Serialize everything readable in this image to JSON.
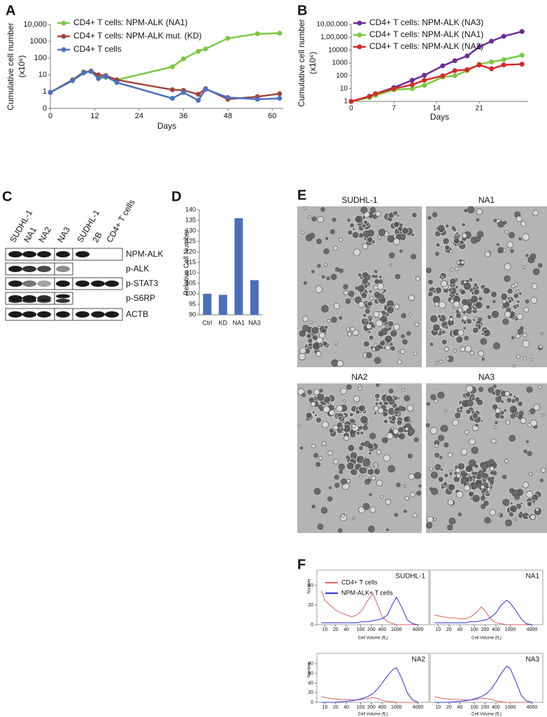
{
  "panel_labels": [
    "A",
    "B",
    "C",
    "D",
    "E",
    "F"
  ],
  "chart_data": [
    {
      "type": "line",
      "log_y": true,
      "markers": true,
      "legend": "top-left",
      "xlabel": "Days",
      "ylabel": [
        "Cumulative cell number",
        "(x10⁶)"
      ],
      "x": [
        0,
        6,
        9,
        11,
        13,
        15,
        18,
        33,
        36,
        40,
        42,
        48,
        56,
        62
      ],
      "series": [
        {
          "name": "CD4+ T cells: NPM-ALK (NA1)",
          "color": "#7ac943",
          "values": [
            0.9,
            5,
            15,
            16,
            8,
            7,
            5,
            30,
            90,
            250,
            350,
            1500,
            2800,
            3000
          ]
        },
        {
          "name": "CD4+ T cells: NPM-ALK mut. (KD)",
          "color": "#a0463c",
          "values": [
            0.9,
            5,
            14,
            17,
            10,
            9,
            5,
            1.3,
            1.2,
            0.7,
            1.5,
            0.35,
            0.5,
            0.75
          ]
        },
        {
          "name": "CD4+ T cells",
          "color": "#4a72c4",
          "values": [
            0.9,
            4.5,
            13,
            16,
            6,
            8,
            3.5,
            0.4,
            0.9,
            0.3,
            1.4,
            0.45,
            0.35,
            0.4
          ]
        }
      ],
      "xlim": [
        0,
        63
      ],
      "xticks": [
        0,
        12,
        24,
        36,
        48,
        60
      ],
      "ylim": [
        0.1,
        10000
      ],
      "yticks": [
        {
          "value": 0.1,
          "label": "0"
        },
        1,
        10,
        100,
        1000,
        {
          "value": 10000,
          "label": "10,000"
        }
      ]
    },
    {
      "type": "line",
      "log_y": true,
      "markers": true,
      "legend": "top-left",
      "xlabel": "Days",
      "ylabel": [
        "Cumulative cell number",
        "(x10⁶)"
      ],
      "x": [
        0,
        3,
        4,
        7,
        10,
        12,
        15,
        17,
        19,
        21,
        23,
        25,
        28
      ],
      "series": [
        {
          "name": "CD4+ T cells: NPM-ALK (NA3)",
          "color": "#6a2c9a",
          "values": [
            1,
            2.5,
            4,
            12,
            45,
            110,
            600,
            1500,
            3500,
            18000,
            50000,
            120000,
            280000
          ]
        },
        {
          "name": "CD4+ T cells: NPM-ALK (NA1)",
          "color": "#7ac943",
          "values": [
            1,
            2,
            3,
            8,
            10,
            18,
            80,
            100,
            250,
            800,
            1200,
            1800,
            4000
          ]
        },
        {
          "name": "CD4+ T cells: NPM-ALK (NA2)",
          "color": "#d42a2a",
          "values": [
            1,
            2.5,
            4,
            10,
            20,
            45,
            100,
            250,
            300,
            700,
            350,
            700,
            800
          ]
        }
      ],
      "xlim": [
        0,
        29
      ],
      "xticks": [
        0,
        7,
        14,
        21
      ],
      "ylim": [
        1,
        1000000
      ],
      "yticks": [
        1,
        10,
        100,
        1000,
        10000,
        {
          "value": 100000,
          "label": "1,00,000"
        },
        {
          "value": 1000000,
          "label": "10,00,000"
        }
      ]
    },
    {
      "type": "bar",
      "ylabel": "Relative Cell Number",
      "categories": [
        "Ctrl",
        "KD",
        "NA1",
        "NA3"
      ],
      "values": [
        100,
        99.5,
        136,
        106.5
      ],
      "color": "#4a6fb8",
      "ylim": [
        90,
        140
      ],
      "yticks": [
        90,
        95,
        100,
        105,
        110,
        115,
        120,
        125,
        130,
        135,
        140
      ]
    },
    {
      "type": "line",
      "log_x": true,
      "frame": true,
      "legend": "top-left",
      "title": "SUDHL-1",
      "xlabel": "Cell Volume (fL)",
      "ylabel": "Number",
      "x": [
        8,
        10,
        14,
        20,
        28,
        40,
        56,
        80,
        110,
        160,
        220,
        300,
        400,
        560,
        800,
        1000,
        1400,
        2000,
        2800,
        4000
      ],
      "series": [
        {
          "name": "CD4+ T cells",
          "color": "#e06060",
          "values": [
            35,
            25,
            20,
            15,
            12,
            10,
            8,
            10,
            15,
            25,
            32,
            20,
            8,
            3,
            1,
            0,
            0,
            0,
            0,
            0
          ]
        },
        {
          "name": "NPM-ALK+ T cells",
          "color": "#3030e0",
          "values": [
            2,
            2,
            2,
            2,
            2,
            2,
            2,
            2,
            3,
            3,
            4,
            5,
            6,
            10,
            22,
            28,
            18,
            5,
            1,
            0
          ]
        }
      ],
      "xlim": [
        6,
        8000
      ],
      "xticks": [
        10,
        20,
        40,
        100,
        200,
        400,
        1000,
        4000
      ],
      "ylim": [
        0,
        50
      ],
      "yticks": [
        0,
        20,
        40
      ]
    },
    {
      "type": "line",
      "log_x": true,
      "frame": true,
      "title": "NA1",
      "xlabel": "Cell Volume (fL)",
      "x": [
        8,
        10,
        14,
        20,
        28,
        40,
        56,
        80,
        110,
        160,
        220,
        300,
        400,
        560,
        800,
        1000,
        1400,
        2000,
        2800,
        4000
      ],
      "series": [
        {
          "color": "#e06060",
          "values": [
            10,
            9,
            8,
            7,
            7,
            6,
            6,
            8,
            12,
            18,
            12,
            5,
            2,
            1,
            0,
            0,
            0,
            0,
            0,
            0
          ]
        },
        {
          "color": "#3030e0",
          "values": [
            2,
            2,
            2,
            2,
            2,
            2,
            2,
            3,
            3,
            4,
            5,
            8,
            12,
            20,
            25,
            22,
            15,
            6,
            1,
            0
          ]
        }
      ],
      "xlim": [
        6,
        8000
      ],
      "xticks": [
        10,
        20,
        40,
        100,
        200,
        400,
        1000,
        4000
      ],
      "ylim": [
        0,
        50
      ]
    },
    {
      "type": "line",
      "log_x": true,
      "frame": true,
      "title": "NA2",
      "xlabel": "Cell Volume (fL)",
      "ylabel": "Number",
      "x": [
        8,
        10,
        14,
        20,
        28,
        40,
        56,
        80,
        110,
        160,
        220,
        300,
        400,
        560,
        800,
        1000,
        1400,
        2000,
        2800,
        4000
      ],
      "series": [
        {
          "color": "#e06060",
          "values": [
            12,
            10,
            8,
            7,
            6,
            6,
            5,
            5,
            6,
            8,
            10,
            8,
            4,
            2,
            1,
            0,
            0,
            0,
            0,
            0
          ]
        },
        {
          "color": "#3030e0",
          "values": [
            0,
            0,
            0,
            0,
            1,
            2,
            3,
            5,
            8,
            12,
            18,
            28,
            40,
            55,
            68,
            72,
            50,
            20,
            5,
            0
          ]
        }
      ],
      "xlim": [
        6,
        8000
      ],
      "xticks": [
        10,
        20,
        40,
        100,
        200,
        400,
        1000,
        4000
      ],
      "ylim": [
        0,
        90
      ],
      "yticks": [
        0,
        20,
        40,
        60,
        80
      ]
    },
    {
      "type": "line",
      "log_x": true,
      "frame": true,
      "title": "NA3",
      "xlabel": "Cell Volume (fL)",
      "x": [
        8,
        10,
        14,
        20,
        28,
        40,
        56,
        80,
        110,
        160,
        220,
        300,
        400,
        560,
        800,
        1000,
        1400,
        2000,
        2800,
        4000
      ],
      "series": [
        {
          "color": "#e06060",
          "values": [
            12,
            10,
            8,
            7,
            6,
            6,
            5,
            5,
            6,
            8,
            8,
            6,
            3,
            1,
            0,
            0,
            0,
            0,
            0,
            0
          ]
        },
        {
          "color": "#3030e0",
          "values": [
            0,
            0,
            0,
            0,
            1,
            2,
            3,
            5,
            8,
            12,
            18,
            28,
            42,
            60,
            75,
            70,
            45,
            15,
            3,
            0
          ]
        }
      ],
      "xlim": [
        6,
        8000
      ],
      "xticks": [
        10,
        20,
        40,
        100,
        200,
        400,
        1000,
        4000
      ],
      "ylim": [
        0,
        90
      ]
    }
  ],
  "blot": {
    "columns": [
      "SUDHL-1",
      "NA1",
      "NA2",
      "NA3",
      "SUDHL-1",
      "2B",
      "CD4+ T cells"
    ],
    "rows": [
      "NPM-ALK",
      "p-ALK",
      "p-STAT3",
      "p-S6RP",
      "ACTB"
    ]
  },
  "micrographs": [
    "SUDHL-1",
    "NA1",
    "NA2",
    "NA3"
  ]
}
